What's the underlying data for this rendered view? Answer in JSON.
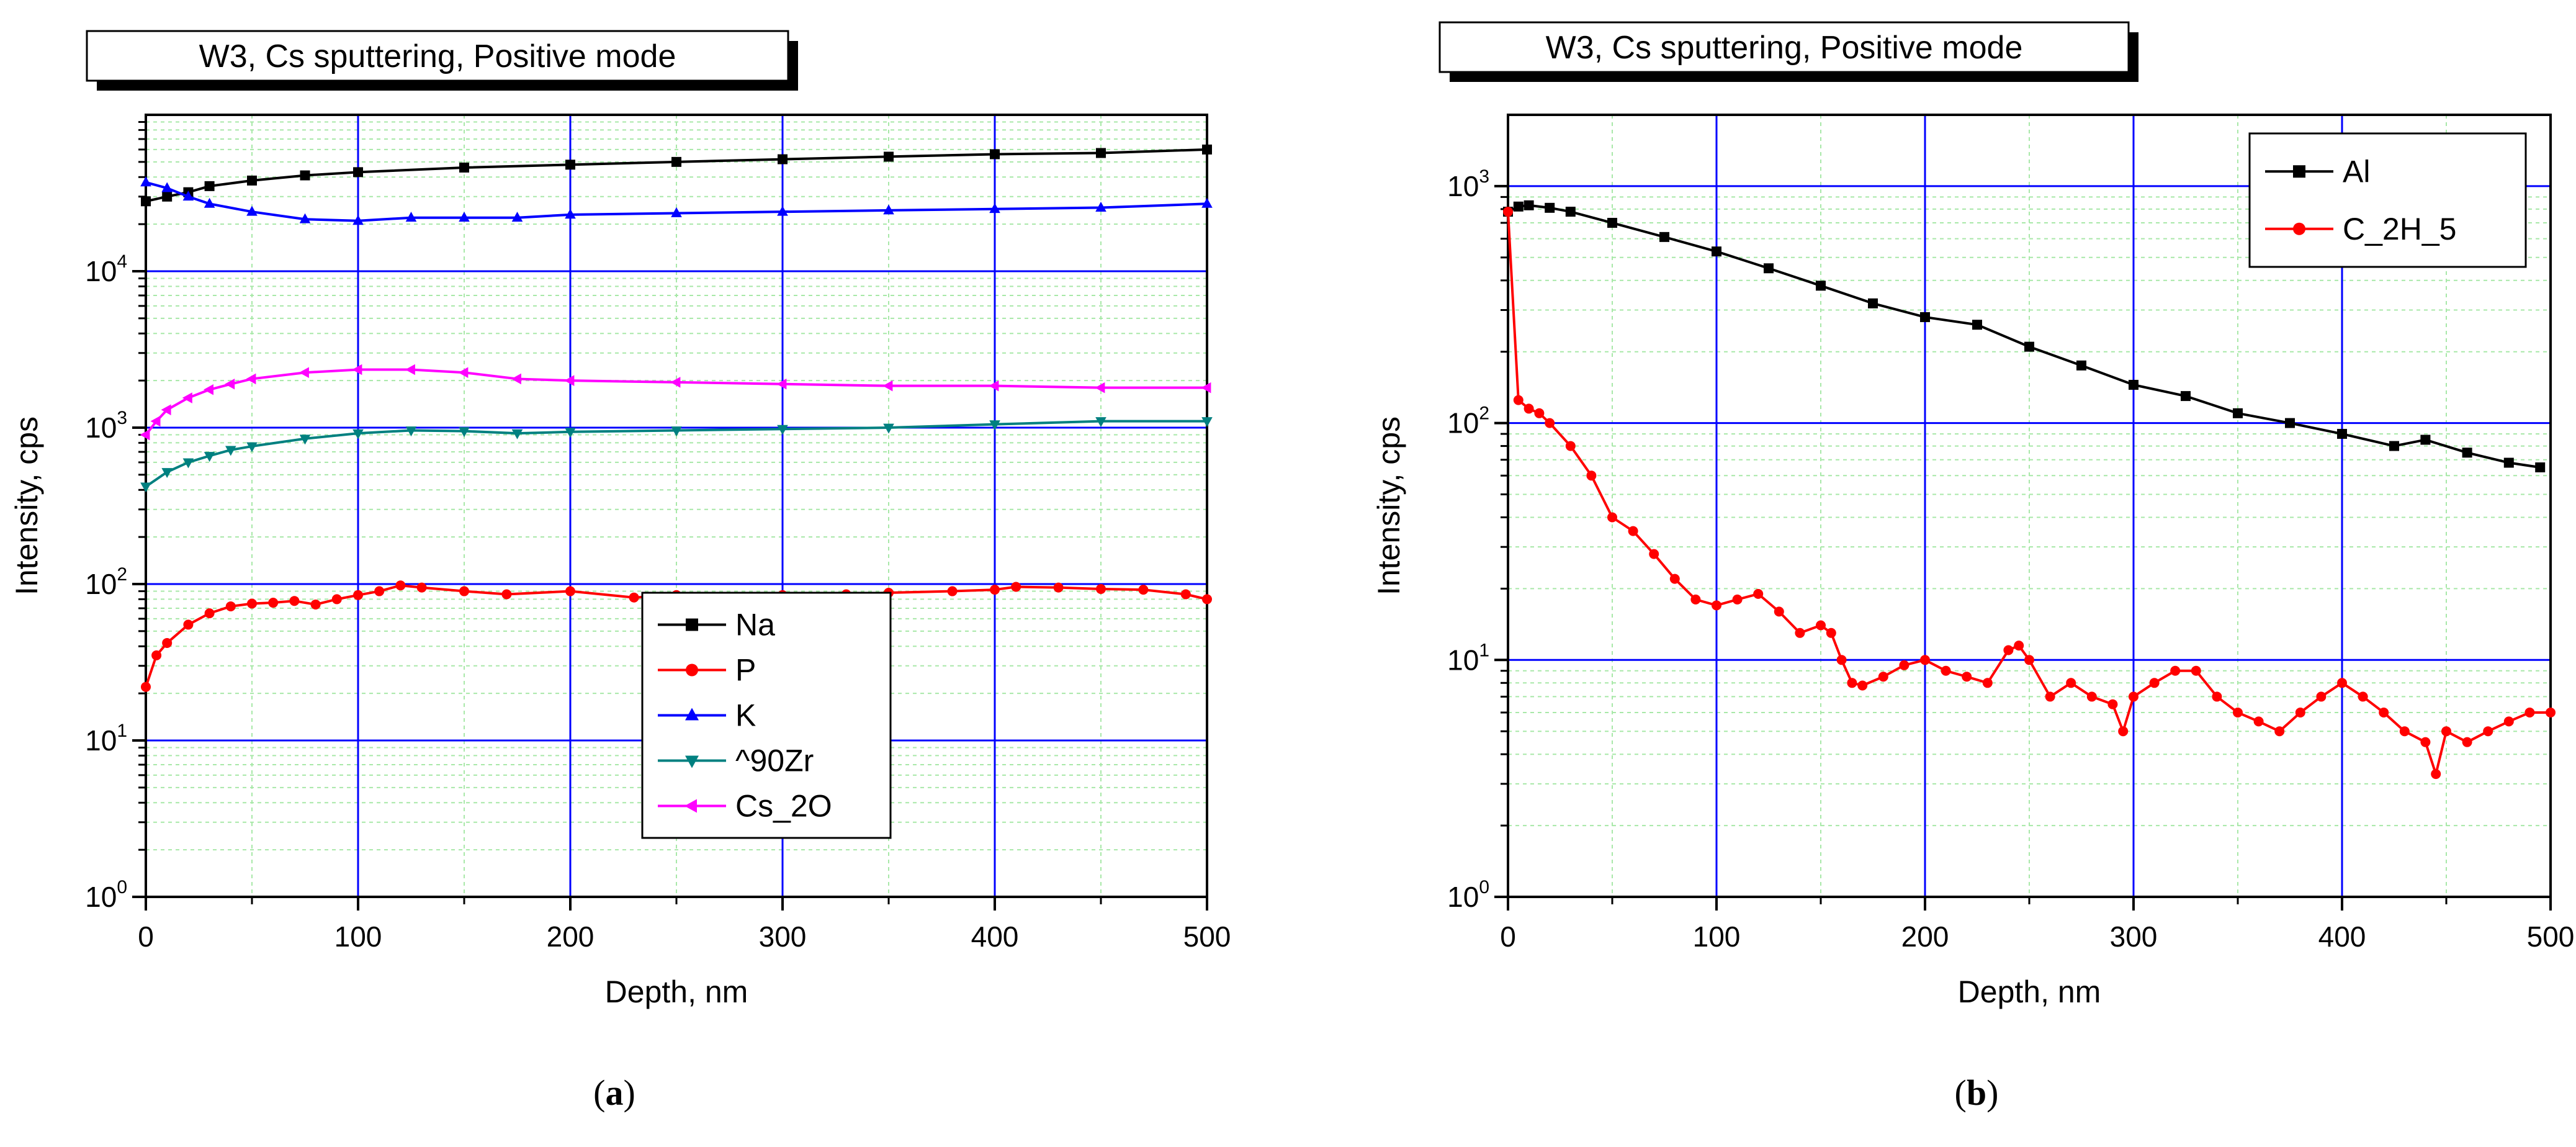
{
  "chart_data": [
    {
      "type": "line",
      "panel_label": "a",
      "title": "W3, Cs sputtering, Positive mode",
      "xlabel": "Depth, nm",
      "ylabel": "Intensity, cps",
      "xlim": [
        0,
        500
      ],
      "ylim": [
        1,
        100000
      ],
      "yscale": "log",
      "x_ticks": [
        "0",
        "100",
        "200",
        "300",
        "400",
        "500"
      ],
      "y_ticks": [
        {
          "base": "10",
          "exp": "0"
        },
        {
          "base": "10",
          "exp": "1"
        },
        {
          "base": "10",
          "exp": "2"
        },
        {
          "base": "10",
          "exp": "3"
        },
        {
          "base": "10",
          "exp": "4"
        }
      ],
      "legend_position": "center-right",
      "series": [
        {
          "name": "Na",
          "color": "#000000",
          "marker": "square",
          "x": [
            0,
            10,
            20,
            30,
            50,
            75,
            100,
            150,
            200,
            250,
            300,
            350,
            400,
            450,
            500
          ],
          "y": [
            28000,
            30000,
            32000,
            35000,
            38000,
            41000,
            43000,
            46000,
            48000,
            50000,
            52000,
            54000,
            56000,
            57000,
            60000
          ]
        },
        {
          "name": "P",
          "color": "#ff0000",
          "marker": "circle",
          "x": [
            0,
            5,
            10,
            20,
            30,
            40,
            50,
            60,
            70,
            80,
            90,
            100,
            110,
            120,
            130,
            150,
            170,
            200,
            230,
            250,
            270,
            300,
            330,
            350,
            380,
            400,
            410,
            430,
            450,
            470,
            490,
            500
          ],
          "y": [
            22,
            35,
            42,
            55,
            65,
            72,
            75,
            76,
            78,
            74,
            80,
            85,
            90,
            98,
            95,
            90,
            86,
            90,
            82,
            85,
            80,
            85,
            86,
            88,
            90,
            92,
            96,
            95,
            93,
            92,
            86,
            80
          ]
        },
        {
          "name": "K",
          "color": "#0000ff",
          "marker": "triangle-up",
          "x": [
            0,
            10,
            20,
            30,
            50,
            75,
            100,
            125,
            150,
            175,
            200,
            250,
            300,
            350,
            400,
            450,
            500
          ],
          "y": [
            37000,
            34000,
            30000,
            27000,
            24000,
            21500,
            21000,
            22000,
            22000,
            22000,
            23000,
            23500,
            24000,
            24500,
            25000,
            25500,
            27000
          ]
        },
        {
          "name": "^90Zr",
          "color": "#008080",
          "marker": "triangle-down",
          "x": [
            0,
            10,
            20,
            30,
            40,
            50,
            75,
            100,
            125,
            150,
            175,
            200,
            250,
            300,
            350,
            400,
            450,
            500
          ],
          "y": [
            420,
            520,
            600,
            660,
            720,
            760,
            850,
            920,
            960,
            950,
            920,
            940,
            960,
            980,
            1000,
            1050,
            1100,
            1100
          ]
        },
        {
          "name": "Cs_2O",
          "color": "#ff00ff",
          "marker": "triangle-left",
          "x": [
            0,
            5,
            10,
            20,
            30,
            40,
            50,
            75,
            100,
            125,
            150,
            175,
            200,
            250,
            300,
            350,
            400,
            450,
            500
          ],
          "y": [
            900,
            1100,
            1300,
            1550,
            1750,
            1900,
            2050,
            2250,
            2350,
            2350,
            2250,
            2050,
            2000,
            1950,
            1900,
            1850,
            1850,
            1800,
            1800
          ]
        }
      ]
    },
    {
      "type": "line",
      "panel_label": "b",
      "title": "W3, Cs sputtering, Positive mode",
      "xlabel": "Depth, nm",
      "ylabel": "Intensity, cps",
      "xlim": [
        0,
        500
      ],
      "ylim": [
        1,
        2000
      ],
      "yscale": "log",
      "x_ticks": [
        "0",
        "100",
        "200",
        "300",
        "400",
        "500"
      ],
      "y_ticks": [
        {
          "base": "10",
          "exp": "0"
        },
        {
          "base": "10",
          "exp": "1"
        },
        {
          "base": "10",
          "exp": "2"
        },
        {
          "base": "10",
          "exp": "3"
        }
      ],
      "legend_position": "top-right",
      "series": [
        {
          "name": "Al",
          "color": "#000000",
          "marker": "square",
          "x": [
            0,
            5,
            10,
            20,
            30,
            50,
            75,
            100,
            125,
            150,
            175,
            200,
            225,
            250,
            275,
            300,
            325,
            350,
            375,
            400,
            425,
            440,
            460,
            480,
            495
          ],
          "y": [
            780,
            820,
            830,
            810,
            780,
            700,
            610,
            530,
            450,
            380,
            320,
            280,
            260,
            210,
            175,
            145,
            130,
            110,
            100,
            90,
            80,
            85,
            75,
            68,
            65
          ]
        },
        {
          "name": "C_2H_5",
          "color": "#ff0000",
          "marker": "circle",
          "x": [
            0,
            5,
            10,
            15,
            20,
            30,
            40,
            50,
            60,
            70,
            80,
            90,
            100,
            110,
            120,
            130,
            140,
            150,
            155,
            160,
            165,
            170,
            180,
            190,
            200,
            210,
            220,
            230,
            240,
            245,
            250,
            260,
            270,
            280,
            290,
            295,
            300,
            310,
            320,
            330,
            340,
            350,
            360,
            370,
            380,
            390,
            400,
            410,
            420,
            430,
            440,
            445,
            450,
            460,
            470,
            480,
            490,
            500
          ],
          "y": [
            780,
            125,
            115,
            110,
            100,
            80,
            60,
            40,
            35,
            28,
            22,
            18,
            17,
            18,
            19,
            16,
            13,
            14,
            13,
            10,
            8,
            7.8,
            8.5,
            9.5,
            10,
            9,
            8.5,
            8,
            11,
            11.5,
            10,
            7,
            8,
            7,
            6.5,
            5,
            7,
            8,
            9,
            9,
            7,
            6,
            5.5,
            5,
            6,
            7,
            8,
            7,
            6,
            5,
            4.5,
            3.3,
            5,
            4.5,
            5,
            5.5,
            6,
            6
          ]
        }
      ]
    }
  ]
}
